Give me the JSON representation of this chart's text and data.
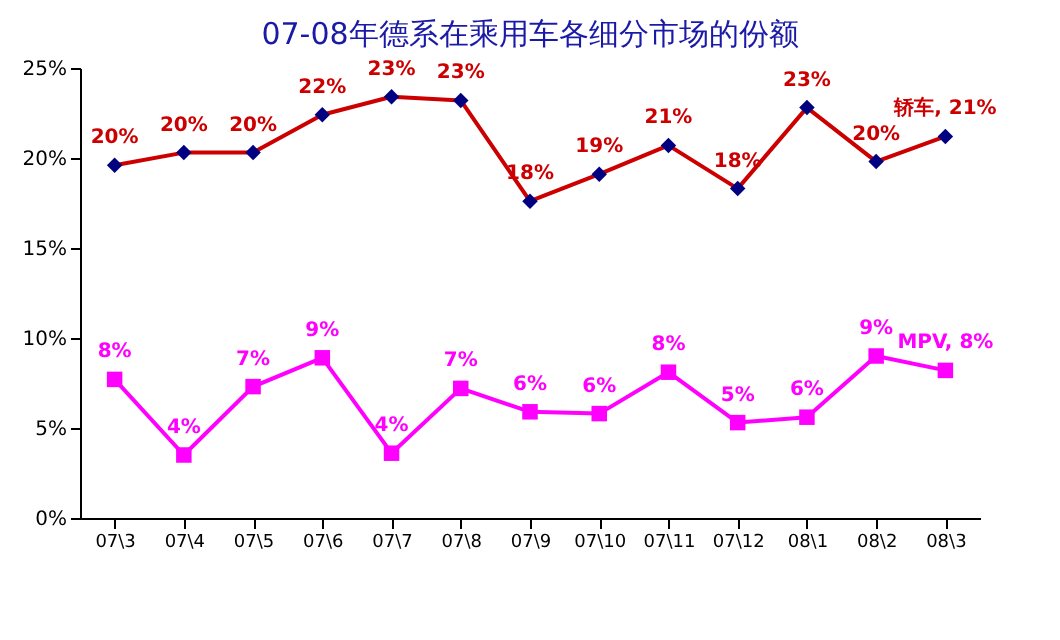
{
  "chart_data": {
    "type": "line",
    "title": "07-08年德系在乘用车各细分市场的份额",
    "categories": [
      "07\\3",
      "07\\4",
      "07\\5",
      "07\\6",
      "07\\7",
      "07\\8",
      "07\\9",
      "07\\10",
      "07\\11",
      "07\\12",
      "08\\1",
      "08\\2",
      "08\\3"
    ],
    "series": [
      {
        "name": "轿车",
        "color": "#cc0000",
        "marker": "diamond",
        "values": [
          19.6,
          20.3,
          20.3,
          22.4,
          23.4,
          23.2,
          17.6,
          19.1,
          20.7,
          18.3,
          22.8,
          19.8,
          21.2
        ],
        "value_labels": [
          "20%",
          "20%",
          "20%",
          "22%",
          "23%",
          "23%",
          "18%",
          "19%",
          "21%",
          "18%",
          "23%",
          "20%",
          ", 21%"
        ]
      },
      {
        "name": "MPV",
        "color": "#ff00ff",
        "marker": "square",
        "values": [
          7.7,
          3.5,
          7.3,
          8.9,
          3.6,
          7.2,
          5.9,
          5.8,
          8.1,
          5.3,
          5.6,
          9.0,
          8.2
        ],
        "value_labels": [
          "8%",
          "4%",
          "7%",
          "9%",
          "4%",
          "7%",
          "6%",
          "6%",
          "8%",
          "5%",
          "6%",
          "9%",
          ", 8%"
        ]
      }
    ],
    "ylim": [
      0,
      25
    ],
    "yticks": [
      {
        "value": 0,
        "label": "0%"
      },
      {
        "value": 5,
        "label": "5%"
      },
      {
        "value": 10,
        "label": "10%"
      },
      {
        "value": 15,
        "label": "15%"
      },
      {
        "value": 20,
        "label": "20%"
      },
      {
        "value": 25,
        "label": "25%"
      }
    ],
    "grid": false
  }
}
